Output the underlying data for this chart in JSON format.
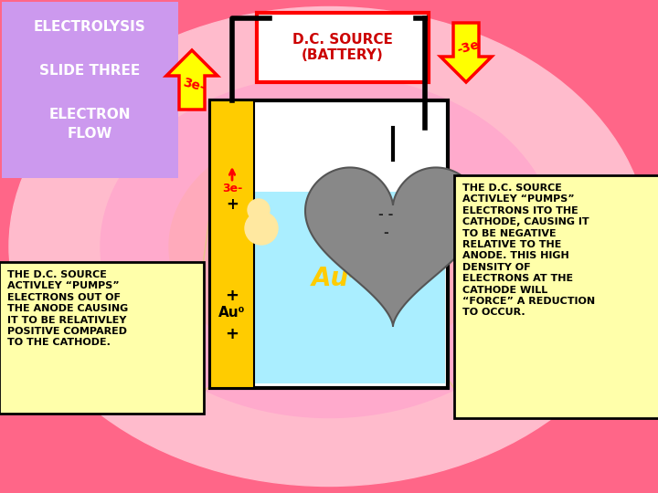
{
  "bg_color": "#ff6688",
  "title_box_facecolor": "#bb99dd",
  "title_text_lines": [
    "ELECTROLYSIS",
    "SLIDE THREE",
    "ELECTRON\nFLOW"
  ],
  "battery_text": "D.C. SOURCE\n(BATTERY)",
  "left_arrow_label": "3e-",
  "right_arrow_label": "-3e",
  "anode_color": "#ffcc00",
  "solution_color": "#aaeeff",
  "cathode_color": "#888888",
  "left_box_color": "#ffffaa",
  "left_box_text": "THE D.C. SOURCE\nACTIVLEY “PUMPS”\nELECTRONS OUT OF\nTHE ANODE CAUSING\nIT TO BE RELATIVLEY\nPOSITIVE COMPARED\nTO THE CATHODE.",
  "right_box_color": "#ffffaa",
  "right_box_text": "THE D.C. SOURCE\nACTIVLEY “PUMPS”\nELECTRONS ITO THE\nCATHODE, CAUSING IT\nTO BE NEGATIVE\nRELATIVE TO THE\nANODE. THIS HIGH\nDENSITY OF\nELECTRONS AT THE\nCATHODE WILL\n“FORCE” A REDUCTION\nTO OCCUR.",
  "arrow_yellow": "#ffff00",
  "arrow_red": "#ff0000",
  "wire_color": "#000000",
  "beaker_outline": "#000000",
  "spot_color": "#e8c090"
}
